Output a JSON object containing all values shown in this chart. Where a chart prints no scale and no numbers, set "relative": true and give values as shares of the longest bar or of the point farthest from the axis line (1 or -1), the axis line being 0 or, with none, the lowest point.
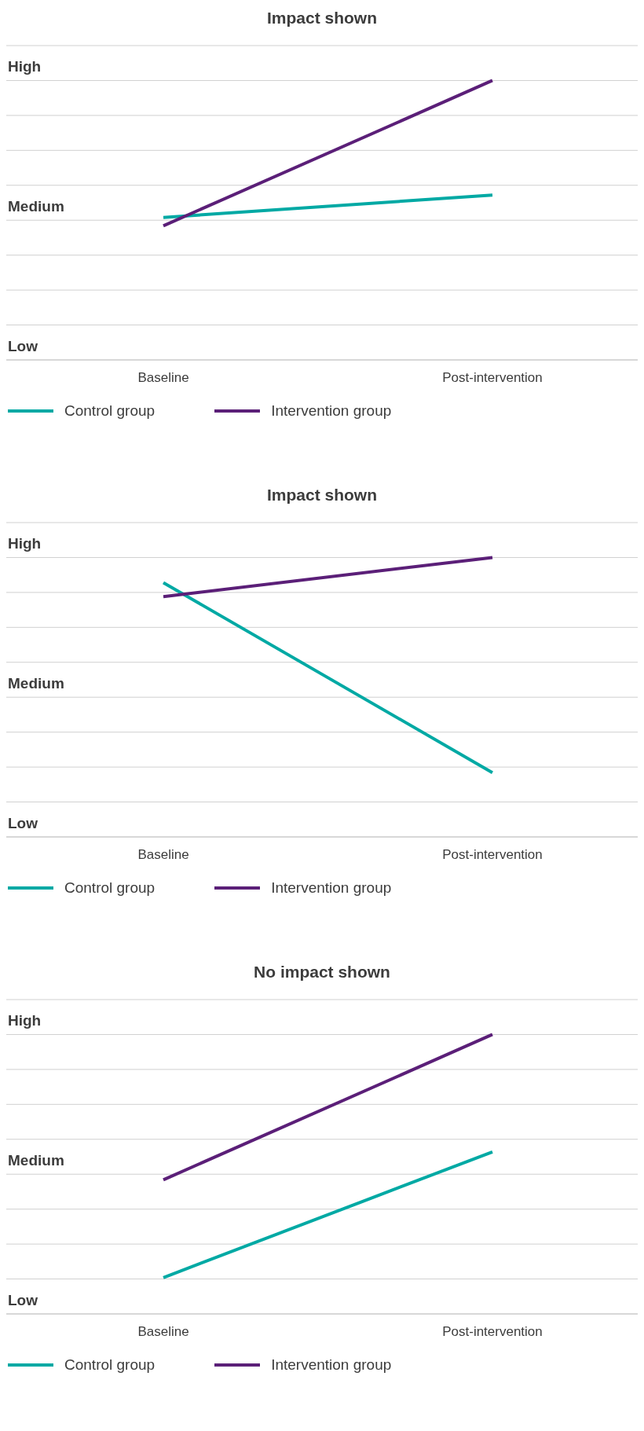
{
  "chart_data": [
    {
      "type": "line",
      "title": "Impact shown",
      "categories": [
        "Baseline",
        "Post-intervention"
      ],
      "relative": true,
      "annotations": [
        "High",
        "Medium",
        "Low"
      ],
      "grid": "y",
      "legend": "bottom left",
      "marker": "none",
      "line_style": "solid",
      "series": [
        {
          "name": "Control group",
          "color": "#00a9a4",
          "values": [
            0.51,
            0.59
          ]
        },
        {
          "name": "Intervention group",
          "color": "#5b1f78",
          "values": [
            0.48,
            1
          ]
        }
      ]
    },
    {
      "type": "line",
      "title": "Impact shown",
      "categories": [
        "Baseline",
        "Post-intervention"
      ],
      "relative": true,
      "annotations": [
        "High",
        "Medium",
        "Low"
      ],
      "grid": "y",
      "legend": "bottom left",
      "marker": "none",
      "line_style": "solid",
      "series": [
        {
          "name": "Control group",
          "color": "#00a9a4",
          "values": [
            0.91,
            0.23
          ]
        },
        {
          "name": "Intervention group",
          "color": "#5b1f78",
          "values": [
            0.86,
            1
          ]
        }
      ]
    },
    {
      "type": "line",
      "title": "No impact shown",
      "categories": [
        "Baseline",
        "Post-intervention"
      ],
      "relative": true,
      "annotations": [
        "High",
        "Medium",
        "Low"
      ],
      "grid": "y",
      "legend": "bottom left",
      "marker": "none",
      "line_style": "solid",
      "series": [
        {
          "name": "Control group",
          "color": "#00a9a4",
          "values": [
            0.13,
            0.58
          ]
        },
        {
          "name": "Intervention group",
          "color": "#5b1f78",
          "values": [
            0.48,
            1
          ]
        }
      ]
    }
  ]
}
